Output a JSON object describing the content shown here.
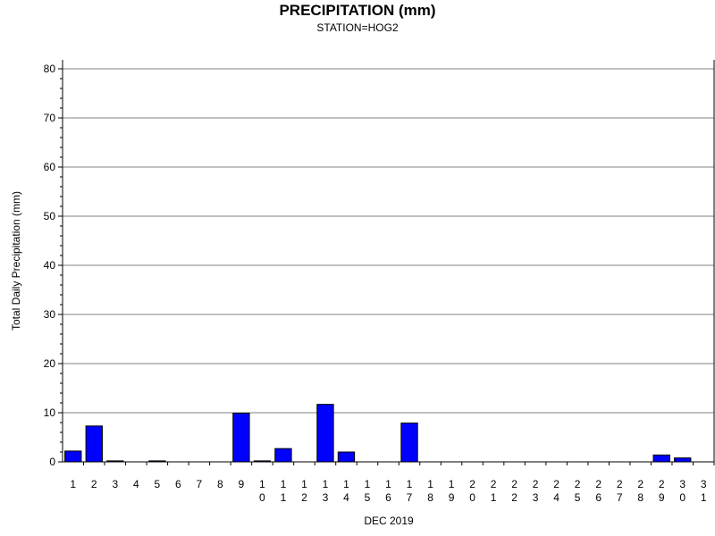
{
  "chart_data": {
    "type": "bar",
    "title": "PRECIPITATION (mm)",
    "subtitle": "STATION=HOG2",
    "xlabel": "DEC 2019",
    "ylabel": "Total Daily Precipitation (mm)",
    "ylim": [
      0,
      80
    ],
    "yticks": [
      0,
      10,
      20,
      30,
      40,
      50,
      60,
      70,
      80
    ],
    "grid": true,
    "categories": [
      "1",
      "2",
      "3",
      "4",
      "5",
      "6",
      "7",
      "8",
      "9",
      "10",
      "11",
      "12",
      "13",
      "14",
      "15",
      "16",
      "17",
      "18",
      "19",
      "20",
      "21",
      "22",
      "23",
      "24",
      "25",
      "26",
      "27",
      "28",
      "29",
      "30",
      "31"
    ],
    "values": [
      2.2,
      7.3,
      0.2,
      0,
      0.2,
      0,
      0,
      0,
      9.9,
      0.2,
      2.7,
      0,
      11.7,
      2.0,
      0,
      0,
      7.9,
      0,
      0,
      0,
      0,
      0,
      0,
      0,
      0,
      0,
      0,
      0,
      1.4,
      0.8,
      0
    ],
    "bar_color": "#0000ff"
  }
}
